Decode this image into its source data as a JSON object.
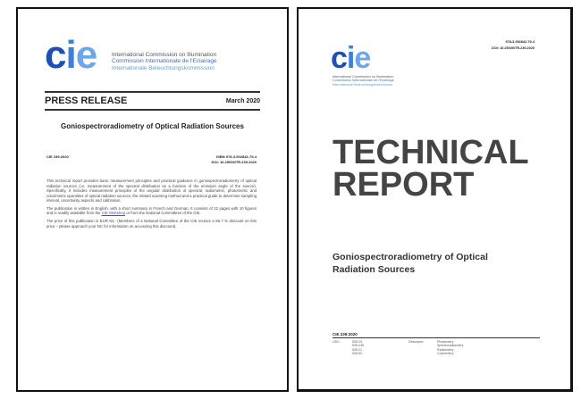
{
  "press_release": {
    "logo": "cie",
    "org": [
      "International Commission on Illumination",
      "Commission Internationale de l'Eclairage",
      "Internationale Beleuchtungskommission"
    ],
    "heading": "PRESS RELEASE",
    "date": "March 2020",
    "title": "Goniospectroradiometry of Optical Radiation Sources",
    "code": "CIE 239:2020",
    "isbn": "ISBN 978-3-902842-79-4",
    "doi": "DOI: 10.25039/TR.239.2020",
    "para1": "This technical report provides basic measurement principles and practical guidance in goniospectroradiometry of optical radiation sources (i.e. measurement of the spectral distribution as a function of the emission angle of the source). Specifically, it includes measurement principles of the angular distribution of spectral, radiometric, photometric and colorimetric quantities of optical radiation sources, the related scanning method and a practical guide to determine sampling interval, uncertainty aspects and calibration.",
    "para2_pre": "The publication is written in English, with a short summary in French and German. It consists of 22 pages with 10 figures and is readily available from the ",
    "para2_link": "CIE Webshop",
    "para2_post": " or from the National Committees of the CIE.",
    "para3": "The price of this publication is EUR 84,- (Members of a National Committee of the CIE receive a 66,7 % discount on this price – please approach your NC for information on accessing this discount)."
  },
  "technical_report": {
    "isbn": "978-3-902842-79-4",
    "doi": "DOI: 10.25039/TR.239.2020",
    "logo": "cie",
    "org": [
      "International Commission on Illumination",
      "Commission Internationale de l'Eclairage",
      "Internationale Beleuchtungskommission"
    ],
    "heading1": "TECHNICAL",
    "heading2": "REPORT",
    "title": "Goniospectroradiometry of Optical Radiation Sources",
    "code": "CIE 239:2020",
    "udc_label": "UDC:",
    "udc": [
      "535.24",
      "535.245",
      "535.21",
      "535.62"
    ],
    "descriptor_label": "Descriptor:",
    "descriptors": [
      "Photometry",
      "Spectroradiometry",
      "Radiometry",
      "Colorimetry"
    ]
  }
}
